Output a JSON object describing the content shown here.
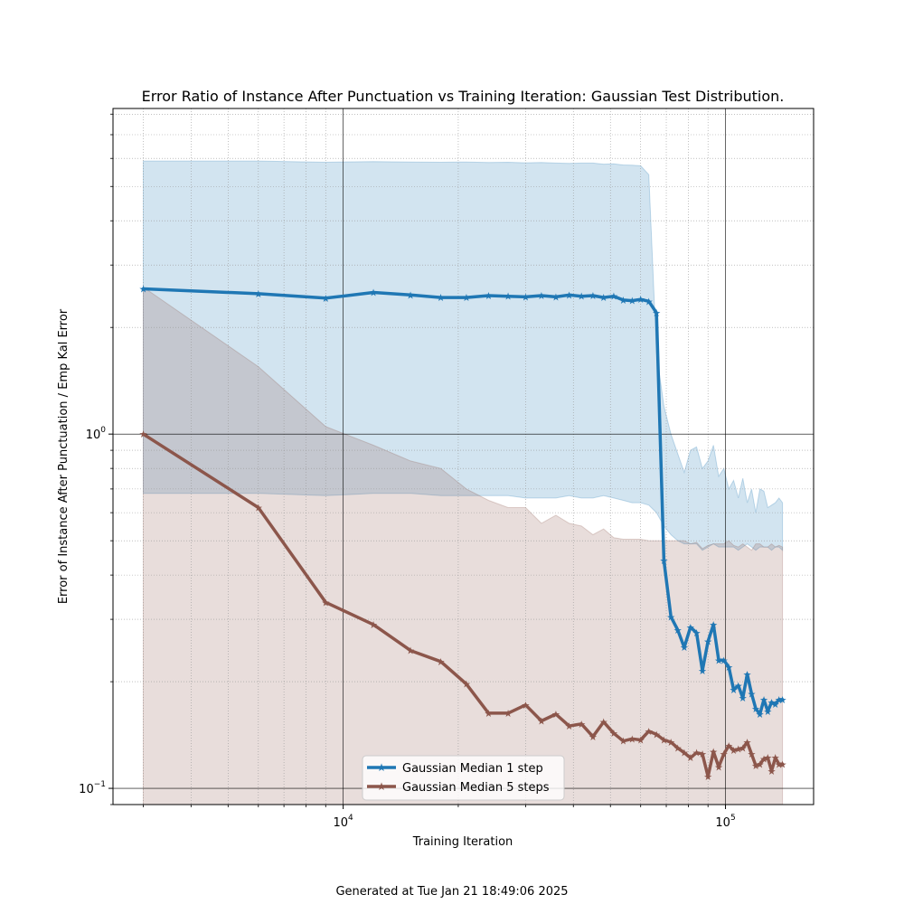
{
  "footer": "Generated at Tue Jan 21 18:49:06 2025",
  "chart_data": {
    "type": "line",
    "title": "Error Ratio of Instance After Punctuation vs Training Iteration: Gaussian Test Distribution.",
    "xlabel": "Training Iteration",
    "ylabel": "Error of Instance After Punctuation / Emp Kal Error",
    "xscale": "log",
    "yscale": "log",
    "xlim": [
      2500,
      170000
    ],
    "ylim": [
      0.09,
      8.3
    ],
    "grid": true,
    "legend_position": "lower center",
    "x_ticks": [
      {
        "value": 10000,
        "base": "10",
        "exp": "4"
      },
      {
        "value": 100000,
        "base": "10",
        "exp": "5"
      }
    ],
    "y_ticks": [
      {
        "value": 0.1,
        "base": "10",
        "exp": "−1"
      },
      {
        "value": 1,
        "base": "10",
        "exp": "0"
      }
    ],
    "series": [
      {
        "name": "Gaussian Median 1 step",
        "color": "#1f77b4",
        "band_color": "#1f77b4",
        "x": [
          3000,
          6000,
          9000,
          12000,
          15000,
          18000,
          21000,
          24000,
          27000,
          30000,
          33000,
          36000,
          39000,
          42000,
          45000,
          48000,
          51000,
          54000,
          57000,
          60000,
          63000,
          66000,
          69000,
          72000,
          75000,
          78000,
          81000,
          84000,
          87000,
          90000,
          93000,
          96000,
          99000,
          102000,
          105000,
          108000,
          111000,
          114000,
          117000,
          120000,
          123000,
          126000,
          129000,
          132000,
          135000,
          138000,
          141000
        ],
        "values": [
          2.57,
          2.49,
          2.42,
          2.51,
          2.47,
          2.43,
          2.43,
          2.46,
          2.45,
          2.44,
          2.46,
          2.44,
          2.47,
          2.45,
          2.46,
          2.43,
          2.45,
          2.39,
          2.38,
          2.4,
          2.37,
          2.2,
          0.44,
          0.305,
          0.28,
          0.25,
          0.285,
          0.275,
          0.215,
          0.26,
          0.29,
          0.23,
          0.23,
          0.22,
          0.19,
          0.195,
          0.18,
          0.21,
          0.185,
          0.168,
          0.162,
          0.178,
          0.165,
          0.175,
          0.173,
          0.178,
          0.178
        ],
        "band_upper": [
          5.9,
          5.9,
          5.85,
          5.88,
          5.86,
          5.85,
          5.86,
          5.84,
          5.85,
          5.83,
          5.84,
          5.82,
          5.81,
          5.82,
          5.82,
          5.78,
          5.79,
          5.75,
          5.74,
          5.72,
          5.4,
          1.7,
          1.2,
          1.0,
          0.88,
          0.78,
          0.9,
          0.92,
          0.8,
          0.84,
          0.93,
          0.76,
          0.8,
          0.7,
          0.74,
          0.66,
          0.75,
          0.64,
          0.7,
          0.6,
          0.7,
          0.69,
          0.62,
          0.63,
          0.64,
          0.66,
          0.64
        ],
        "band_lower": [
          0.68,
          0.68,
          0.67,
          0.68,
          0.68,
          0.67,
          0.67,
          0.67,
          0.67,
          0.66,
          0.66,
          0.66,
          0.67,
          0.66,
          0.66,
          0.67,
          0.66,
          0.65,
          0.64,
          0.64,
          0.63,
          0.6,
          0.55,
          0.52,
          0.5,
          0.49,
          0.49,
          0.49,
          0.47,
          0.48,
          0.49,
          0.48,
          0.48,
          0.48,
          0.48,
          0.47,
          0.48,
          0.49,
          0.48,
          0.47,
          0.48,
          0.48,
          0.48,
          0.47,
          0.48,
          0.48,
          0.47
        ]
      },
      {
        "name": "Gaussian Median 5 steps",
        "color": "#8c564b",
        "band_color": "#8c564b",
        "x": [
          3000,
          6000,
          9000,
          12000,
          15000,
          18000,
          21000,
          24000,
          27000,
          30000,
          33000,
          36000,
          39000,
          42000,
          45000,
          48000,
          51000,
          54000,
          57000,
          60000,
          63000,
          66000,
          69000,
          72000,
          75000,
          78000,
          81000,
          84000,
          87000,
          90000,
          93000,
          96000,
          99000,
          102000,
          105000,
          108000,
          111000,
          114000,
          117000,
          120000,
          123000,
          126000,
          129000,
          132000,
          135000,
          138000,
          141000
        ],
        "values": [
          1.0,
          0.62,
          0.335,
          0.29,
          0.245,
          0.228,
          0.197,
          0.163,
          0.163,
          0.172,
          0.155,
          0.162,
          0.15,
          0.152,
          0.14,
          0.154,
          0.143,
          0.136,
          0.138,
          0.137,
          0.145,
          0.142,
          0.137,
          0.135,
          0.13,
          0.126,
          0.122,
          0.126,
          0.125,
          0.108,
          0.127,
          0.115,
          0.125,
          0.132,
          0.128,
          0.129,
          0.13,
          0.135,
          0.125,
          0.116,
          0.117,
          0.121,
          0.122,
          0.112,
          0.122,
          0.117,
          0.117
        ],
        "band_upper": [
          2.6,
          1.55,
          1.05,
          0.93,
          0.84,
          0.8,
          0.7,
          0.65,
          0.62,
          0.62,
          0.56,
          0.59,
          0.56,
          0.55,
          0.52,
          0.54,
          0.51,
          0.505,
          0.505,
          0.505,
          0.5,
          0.5,
          0.5,
          0.5,
          0.5,
          0.5,
          0.49,
          0.495,
          0.475,
          0.485,
          0.49,
          0.49,
          0.49,
          0.5,
          0.485,
          0.48,
          0.49,
          0.48,
          0.47,
          0.49,
          0.49,
          0.48,
          0.48,
          0.49,
          0.48,
          0.485,
          0.48
        ],
        "band_lower": [
          0.09,
          0.09,
          0.09,
          0.09,
          0.09,
          0.09,
          0.09,
          0.09,
          0.09,
          0.09,
          0.09,
          0.09,
          0.09,
          0.09,
          0.09,
          0.09,
          0.09,
          0.09,
          0.09,
          0.09,
          0.09,
          0.09,
          0.09,
          0.09,
          0.09,
          0.09,
          0.09,
          0.09,
          0.09,
          0.09,
          0.09,
          0.09,
          0.09,
          0.09,
          0.09,
          0.09,
          0.09,
          0.09,
          0.09,
          0.09,
          0.09,
          0.09,
          0.09,
          0.09,
          0.09,
          0.09,
          0.09
        ]
      }
    ]
  }
}
